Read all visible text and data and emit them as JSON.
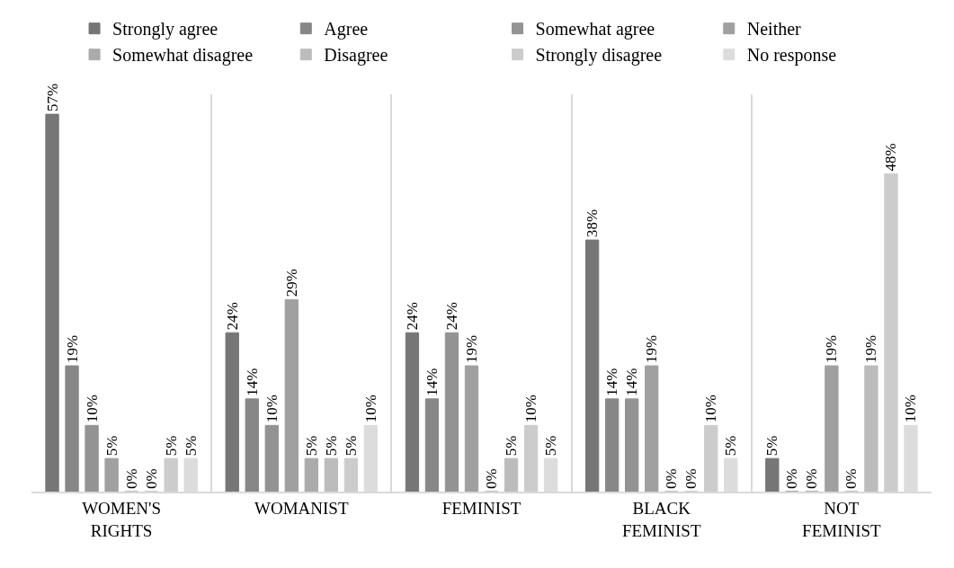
{
  "chart_data": {
    "type": "bar",
    "categories": [
      "WOMEN'S\nRIGHTS",
      "WOMANIST",
      "FEMINIST",
      "BLACK\nFEMINIST",
      "NOT\nFEMINIST"
    ],
    "series": [
      {
        "name": "Strongly agree",
        "color": "#767676",
        "values": [
          57,
          24,
          24,
          38,
          5
        ],
        "value_labels": [
          "57%",
          "24%",
          "24%",
          "38%",
          "5%"
        ]
      },
      {
        "name": "Agree",
        "color": "#878787",
        "values": [
          19,
          14,
          14,
          14,
          0
        ],
        "value_labels": [
          "19%",
          "14%",
          "14%",
          "14%",
          "0%"
        ]
      },
      {
        "name": "Somewhat agree",
        "color": "#939393",
        "values": [
          10,
          10,
          24,
          14,
          0
        ],
        "value_labels": [
          "10%",
          "10%",
          "24%",
          "14%",
          "0%"
        ]
      },
      {
        "name": "Neither",
        "color": "#a0a0a0",
        "values": [
          5,
          29,
          19,
          19,
          19
        ],
        "value_labels": [
          "5%",
          "29%",
          "19%",
          "19%",
          "19%"
        ]
      },
      {
        "name": "Somewhat disagree",
        "color": "#ababab",
        "values": [
          0,
          5,
          0,
          0,
          0
        ],
        "value_labels": [
          "0%",
          "5%",
          "0%",
          "0%",
          "0%"
        ]
      },
      {
        "name": "Disagree",
        "color": "#bcbcbc",
        "values": [
          0,
          5,
          5,
          0,
          19
        ],
        "value_labels": [
          "0%",
          "5%",
          "5%",
          "0%",
          "19%"
        ]
      },
      {
        "name": "Strongly disagree",
        "color": "#cccccc",
        "values": [
          5,
          5,
          10,
          10,
          48
        ],
        "value_labels": [
          "5%",
          "5%",
          "10%",
          "10%",
          "48%"
        ]
      },
      {
        "name": "No response",
        "color": "#dcdcdc",
        "values": [
          5,
          10,
          5,
          5,
          10
        ],
        "value_labels": [
          "5%",
          "10%",
          "5%",
          "5%",
          "10%"
        ]
      }
    ],
    "grid": "x",
    "legend": "top"
  }
}
